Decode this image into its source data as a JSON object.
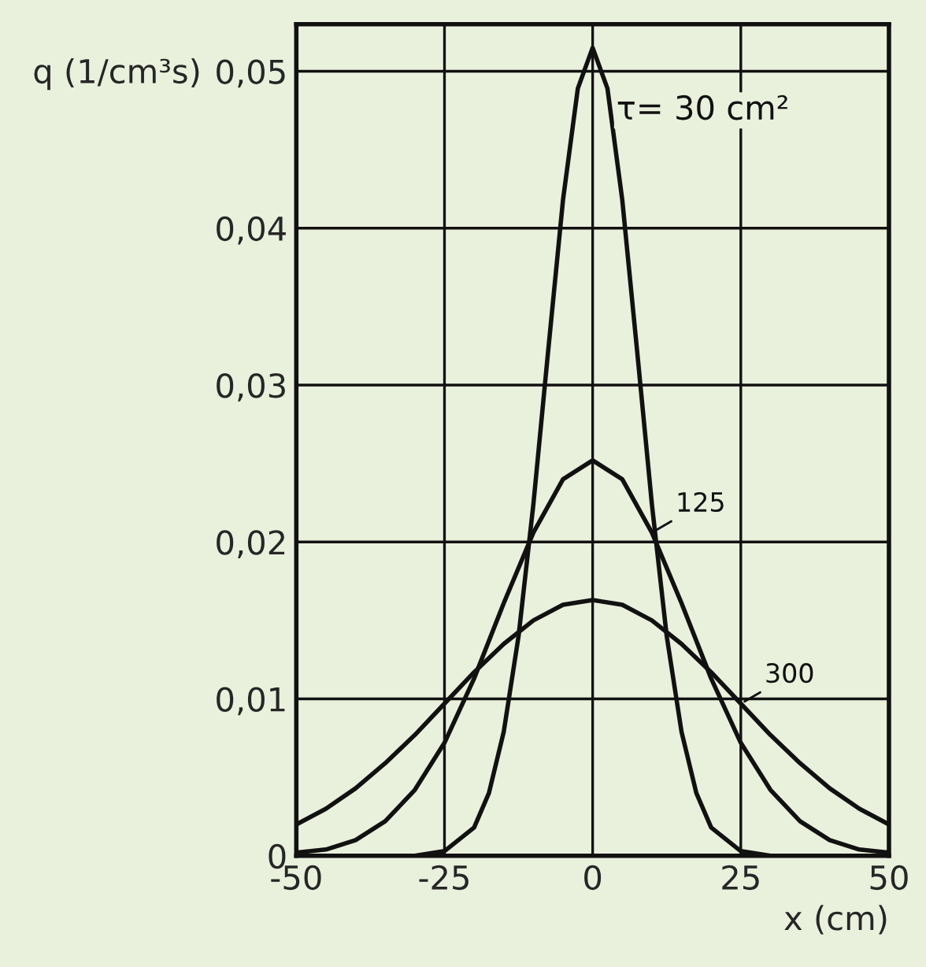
{
  "chart_data": {
    "type": "line",
    "xlabel": "x (cm)",
    "ylabel": "q (1/cm³s)",
    "xlim": [
      -50,
      50
    ],
    "xticks": [
      -50,
      -25,
      0,
      25,
      50
    ],
    "ylim": [
      0,
      0.053
    ],
    "yticks": [
      0,
      {
        "value": 0.01,
        "label": "0,01"
      },
      {
        "value": 0.02,
        "label": "0,02"
      },
      {
        "value": 0.03,
        "label": "0,03"
      },
      {
        "value": 0.04,
        "label": "0,04"
      },
      {
        "value": 0.05,
        "label": "0,05"
      }
    ],
    "grid": true,
    "marker": "none",
    "line_style": "solid",
    "series": [
      {
        "name": "τ= 30 cm²",
        "color": "#111111",
        "x": [
          -50,
          -30,
          -25,
          -20,
          -17.5,
          -15,
          -12.5,
          -10,
          -7.5,
          -5,
          -2.5,
          0,
          2.5,
          5,
          7.5,
          10,
          12.5,
          15,
          17.5,
          20,
          25,
          30,
          50
        ],
        "values": [
          0,
          0,
          0.0003,
          0.0018,
          0.004,
          0.0079,
          0.014,
          0.0224,
          0.0322,
          0.0418,
          0.0489,
          0.0515,
          0.0489,
          0.0418,
          0.0322,
          0.0224,
          0.014,
          0.0079,
          0.004,
          0.0018,
          0.0003,
          0,
          0
        ]
      },
      {
        "name": "125",
        "color": "#111111",
        "x": [
          -50,
          -45,
          -40,
          -35,
          -30,
          -25,
          -20,
          -15,
          -10,
          -5,
          0,
          5,
          10,
          15,
          20,
          25,
          30,
          35,
          40,
          45,
          50
        ],
        "values": [
          0.0002,
          0.0004,
          0.001,
          0.0022,
          0.0042,
          0.0072,
          0.0113,
          0.0161,
          0.0206,
          0.024,
          0.0252,
          0.024,
          0.0206,
          0.0161,
          0.0113,
          0.0072,
          0.0042,
          0.0022,
          0.001,
          0.0004,
          0.0002
        ]
      },
      {
        "name": "300",
        "color": "#111111",
        "x": [
          -50,
          -45,
          -40,
          -35,
          -30,
          -25,
          -20,
          -15,
          -10,
          -5,
          0,
          5,
          10,
          15,
          20,
          25,
          30,
          35,
          40,
          45,
          50
        ],
        "values": [
          0.002,
          0.003,
          0.0043,
          0.0059,
          0.0077,
          0.0097,
          0.0117,
          0.0135,
          0.015,
          0.016,
          0.0163,
          0.016,
          0.015,
          0.0135,
          0.0117,
          0.0097,
          0.0077,
          0.0059,
          0.0043,
          0.003,
          0.002
        ]
      }
    ]
  }
}
